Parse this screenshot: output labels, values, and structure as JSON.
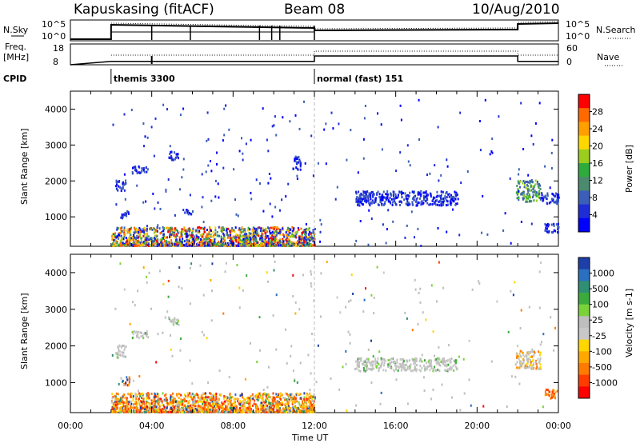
{
  "header": {
    "station": "Kapuskasing (fitACF)",
    "beam": "Beam 08",
    "date": "10/Aug/2010"
  },
  "status_panels": {
    "nsky_label": "N.Sky",
    "nsky_ticks": [
      "10^5",
      "10^0"
    ],
    "nsearch_label": "N.Search",
    "nsearch_ticks": [
      "10^5",
      "10^0"
    ],
    "freq_label_1": "Freq.",
    "freq_label_2": "[MHz]",
    "freq_ticks": [
      "18",
      "8"
    ],
    "nave_label": "Nave",
    "nave_ticks": [
      "60",
      "0"
    ],
    "cpid_label": "CPID",
    "cpid_entries": [
      {
        "start_hour": 2.0,
        "text": "themis 3300"
      },
      {
        "start_hour": 12.0,
        "text": "normal (fast) 151"
      }
    ],
    "nsky_drops_hours": [
      2.0,
      4.0,
      5.9,
      9.3,
      9.9,
      10.3,
      12.0
    ],
    "freq_steps": [
      {
        "from": 2.0,
        "to": 12.0,
        "mhz": 10.5
      },
      {
        "from": 12.0,
        "to": 22.0,
        "mhz": 14.5
      },
      {
        "from": 22.0,
        "to": 24.0,
        "mhz": 10.5
      }
    ]
  },
  "chart_data": [
    {
      "type": "heatmap",
      "panel": "power",
      "xlabel": "Time UT",
      "ylabel": "Slant Range [km]",
      "x_range_hours": [
        0,
        24
      ],
      "x_ticks": [
        "00:00",
        "04:00",
        "08:00",
        "12:00",
        "16:00",
        "20:00",
        "00:00"
      ],
      "y_range_km": [
        180,
        4500
      ],
      "y_ticks": [
        1000,
        2000,
        3000,
        4000
      ],
      "colorbar_label": "Power [dB]",
      "colorbar_ticks": [
        "28",
        "24",
        "20",
        "16",
        "12",
        "8",
        "4"
      ],
      "colorbar_colors": [
        "#ff0000",
        "#ff6a00",
        "#ff9f00",
        "#ffd700",
        "#9bcd1e",
        "#2eab3c",
        "#4b8a6e",
        "#3b5fb8",
        "#1f2dd6",
        "#0000ff"
      ],
      "features": [
        {
          "t0": 2.0,
          "t1": 12.0,
          "r0": 180,
          "r1": 700,
          "level": "mixed",
          "density": "high"
        },
        {
          "t0": 2.2,
          "t1": 2.7,
          "r0": 1700,
          "r1": 2000,
          "level": "low"
        },
        {
          "t0": 2.5,
          "t1": 2.9,
          "r0": 950,
          "r1": 1150,
          "level": "low"
        },
        {
          "t0": 3.0,
          "t1": 3.8,
          "r0": 2200,
          "r1": 2400,
          "level": "low"
        },
        {
          "t0": 4.8,
          "t1": 5.3,
          "r0": 2550,
          "r1": 2800,
          "level": "low"
        },
        {
          "t0": 5.5,
          "t1": 6.0,
          "r0": 1050,
          "r1": 1200,
          "level": "low"
        },
        {
          "t0": 10.9,
          "t1": 11.3,
          "r0": 2300,
          "r1": 2700,
          "level": "low"
        },
        {
          "t0": 14.0,
          "t1": 19.0,
          "r0": 1300,
          "r1": 1700,
          "level": "low"
        },
        {
          "t0": 21.9,
          "t1": 23.1,
          "r0": 1400,
          "r1": 2000,
          "level": "mid"
        },
        {
          "t0": 23.3,
          "t1": 24.0,
          "r0": 550,
          "r1": 800,
          "level": "low"
        },
        {
          "t0": 23.0,
          "t1": 24.0,
          "r0": 1350,
          "r1": 1650,
          "level": "low"
        }
      ]
    },
    {
      "type": "heatmap",
      "panel": "velocity",
      "xlabel": "Time UT",
      "ylabel": "Slant Range [km]",
      "x_range_hours": [
        0,
        24
      ],
      "x_ticks": [
        "00:00",
        "04:00",
        "08:00",
        "12:00",
        "16:00",
        "20:00",
        "00:00"
      ],
      "y_range_km": [
        180,
        4500
      ],
      "y_ticks": [
        1000,
        2000,
        3000,
        4000
      ],
      "colorbar_label": "Velocity [m s-1]",
      "colorbar_ticks": [
        "1000",
        "500",
        "100",
        "25",
        "-25",
        "-100",
        "-500",
        "-1000"
      ],
      "colorbar_colors": [
        "#1e3fa8",
        "#2a6fc0",
        "#2f8f74",
        "#3caa3c",
        "#7ad23a",
        "#bebebe",
        "#c8c8c8",
        "#ffd700",
        "#ffa800",
        "#ff7a00",
        "#ff3c00",
        "#ff0000"
      ],
      "features": [
        {
          "t0": 2.0,
          "t1": 12.0,
          "r0": 180,
          "r1": 700,
          "level": "mixed-orange",
          "density": "high"
        },
        {
          "t0": 2.2,
          "t1": 2.7,
          "r0": 1650,
          "r1": 2000,
          "level": "gray"
        },
        {
          "t0": 2.5,
          "t1": 2.9,
          "r0": 900,
          "r1": 1150,
          "level": "mixed"
        },
        {
          "t0": 3.0,
          "t1": 3.8,
          "r0": 2200,
          "r1": 2400,
          "level": "gray"
        },
        {
          "t0": 4.8,
          "t1": 5.3,
          "r0": 2550,
          "r1": 2800,
          "level": "gray"
        },
        {
          "t0": 14.0,
          "t1": 19.0,
          "r0": 1300,
          "r1": 1650,
          "level": "gray"
        },
        {
          "t0": 21.9,
          "t1": 23.1,
          "r0": 1350,
          "r1": 1900,
          "level": "gray-orange"
        },
        {
          "t0": 23.3,
          "t1": 24.0,
          "r0": 550,
          "r1": 800,
          "level": "orange"
        }
      ]
    }
  ]
}
